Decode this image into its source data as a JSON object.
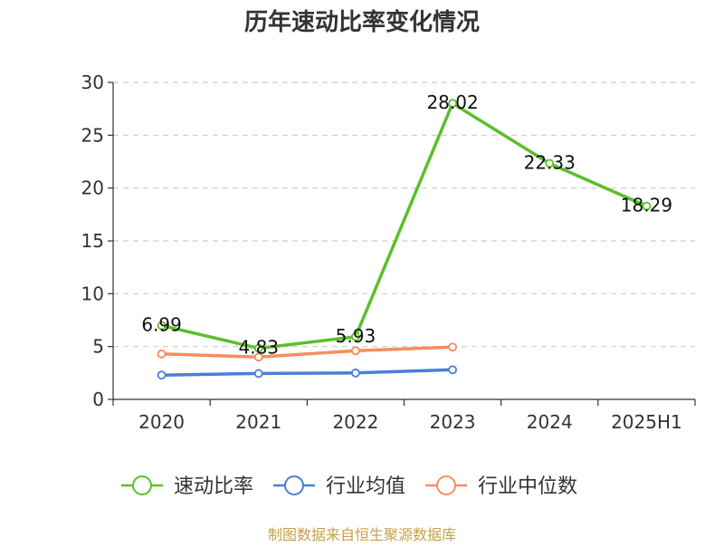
{
  "chart_data": {
    "type": "line",
    "title": "历年速动比率变化情况",
    "categories": [
      "2020",
      "2021",
      "2022",
      "2023",
      "2024",
      "2025H1"
    ],
    "ylim": [
      0,
      30
    ],
    "yticks": [
      0,
      5,
      10,
      15,
      20,
      25,
      30
    ],
    "grid": true,
    "legend_position": "bottom",
    "series": [
      {
        "name": "速动比率",
        "color": "#5cbf2a",
        "values": [
          6.99,
          4.83,
          5.93,
          28.02,
          22.33,
          18.29
        ],
        "labels": [
          "6.99",
          "4.83",
          "5.93",
          "28.02",
          "22.33",
          "18.29"
        ]
      },
      {
        "name": "行业均值",
        "color": "#4a7fd6",
        "values": [
          2.3,
          2.45,
          2.5,
          2.8,
          null,
          null
        ]
      },
      {
        "name": "行业中位数",
        "color": "#f68e5c",
        "values": [
          4.3,
          4.0,
          4.6,
          4.95,
          null,
          null
        ]
      }
    ]
  },
  "source": "制图数据来自恒生聚源数据库"
}
